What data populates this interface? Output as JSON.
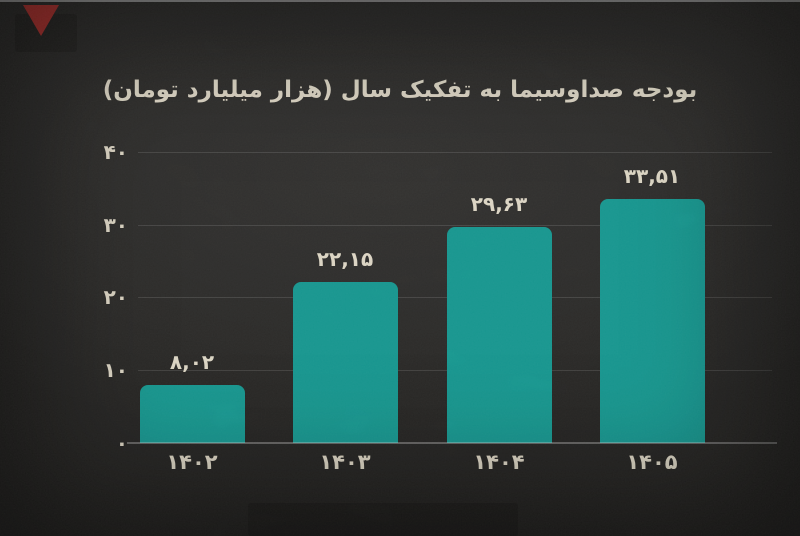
{
  "header": {
    "title": "بودجه صداوسیما به تفکیک سال (هزار میلیارد تومان)"
  },
  "colors": {
    "bar": "#18a29a",
    "title_text": "#f0e9d6",
    "label_text": "#ece5d2",
    "background": "#2a2927",
    "flag": "#bf3430"
  },
  "chart_data": {
    "type": "bar",
    "title": "بودجه صداوسیما به تفکیک سال (هزار میلیارد تومان)",
    "categories": [
      "۱۴۰۲",
      "۱۴۰۳",
      "۱۴۰۴",
      "۱۴۰۵"
    ],
    "values": [
      8.02,
      22.15,
      29.63,
      33.51
    ],
    "value_labels": [
      "۸,۰۲",
      "۲۲,۱۵",
      "۲۹,۶۳",
      "۳۳,۵۱"
    ],
    "ytick_values": [
      0,
      10,
      20,
      30,
      40
    ],
    "ytick_labels": [
      "۰",
      "۱۰",
      "۲۰",
      "۳۰",
      "۴۰"
    ],
    "ylim": [
      0,
      40
    ],
    "xlabel": "",
    "ylabel": "",
    "bar_color": "#18a29a",
    "grid": "horizontal-faint",
    "legend": "none",
    "direction": "rtl"
  }
}
